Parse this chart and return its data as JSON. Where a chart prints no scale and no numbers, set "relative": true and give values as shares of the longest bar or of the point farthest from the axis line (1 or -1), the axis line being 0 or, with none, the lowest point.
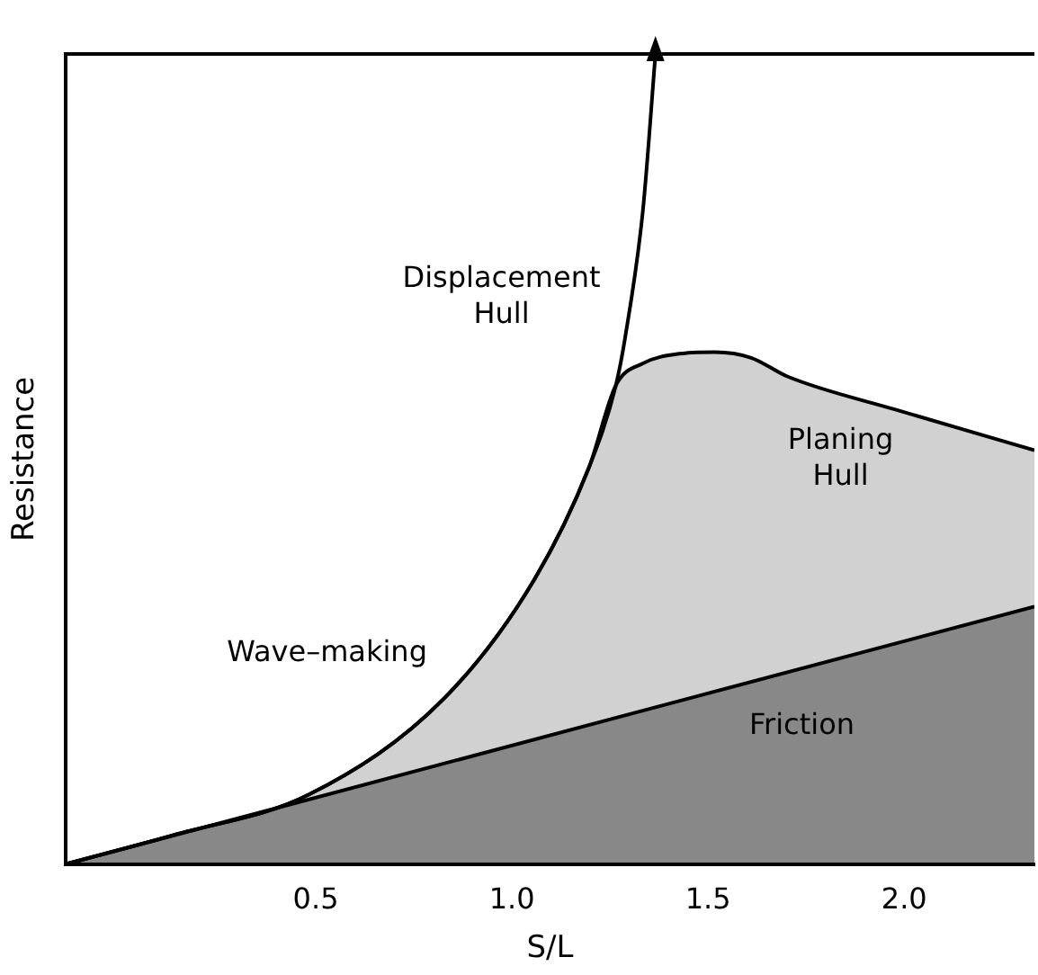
{
  "chart_data": {
    "type": "area",
    "relative": true,
    "xlabel": "S/L",
    "ylabel": "Resistance",
    "xlim": [
      -0.138,
      2.332
    ],
    "xticks": [
      0.5,
      {
        "value": 1,
        "label": "1.0"
      },
      1.5,
      {
        "value": 2,
        "label": "2.0"
      }
    ],
    "grid": false,
    "legend": false,
    "series": [
      {
        "color": "#000000",
        "x": [
          -0.138,
          2.332
        ],
        "values": [
          0,
          0.318
        ]
      },
      {
        "color": "#000000",
        "x": [
          -0.138,
          0.138,
          0.483,
          0.828,
          1.058,
          1.196,
          1.265,
          1.334,
          1.426,
          1.518,
          1.61,
          1.702,
          1.978,
          2.332
        ],
        "values": [
          0,
          0.036,
          0.086,
          0.205,
          0.352,
          0.489,
          0.591,
          0.618,
          0.63,
          0.632,
          0.625,
          0.602,
          0.561,
          0.511
        ]
      },
      {
        "type": "line",
        "color": "#000000",
        "x": [
          -0.138,
          0.138,
          0.483,
          0.828,
          1.058,
          1.196,
          1.265,
          1.288,
          1.334,
          1.366
        ],
        "values": [
          0,
          0.036,
          0.086,
          0.205,
          0.352,
          0.489,
          0.591,
          0.648,
          0.807,
          1.0
        ]
      }
    ],
    "annotations": [
      "Displacement\nHull",
      "Planing\nHull",
      "Friction",
      "Wave–making"
    ]
  }
}
